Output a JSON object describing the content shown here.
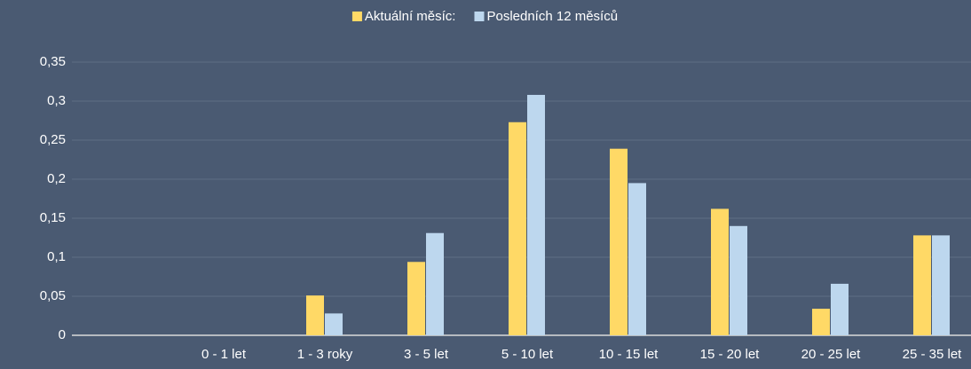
{
  "chart_data": {
    "type": "bar",
    "categories": [
      null,
      "0 - 1 let",
      "1 - 3 roky",
      "3 - 5 let",
      "5 - 10 let",
      "10 - 15 let",
      "15 - 20 let",
      "20 - 25 let",
      "25 - 35 let"
    ],
    "series": [
      {
        "name": "Aktuální měsíc:",
        "color": "#ffd966",
        "values": [
          null,
          0,
          0.051,
          0.094,
          0.273,
          0.239,
          0.162,
          0.034,
          0.128
        ]
      },
      {
        "name": "Posledních 12 měsíců",
        "color": "#bdd7ee",
        "values": [
          null,
          0,
          0.028,
          0.131,
          0.308,
          0.195,
          0.14,
          0.066,
          0.128
        ]
      }
    ],
    "ylim": [
      0,
      0.35
    ],
    "yticks": [
      0,
      {
        "value": 0.05,
        "label": "0,05"
      },
      {
        "value": 0.1,
        "label": "0,1"
      },
      {
        "value": 0.15,
        "label": "0,15"
      },
      {
        "value": 0.2,
        "label": "0,2"
      },
      {
        "value": 0.25,
        "label": "0,25"
      },
      {
        "value": 0.3,
        "label": "0,3"
      },
      {
        "value": 0.35,
        "label": "0,35"
      }
    ],
    "grid": true,
    "legend": "top"
  }
}
